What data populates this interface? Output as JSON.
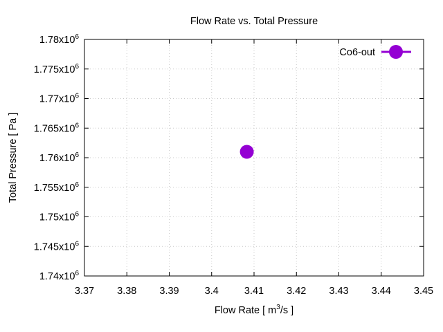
{
  "chart_data": {
    "type": "scatter",
    "title": "Flow Rate vs. Total Pressure",
    "xlabel": "Flow Rate [ m3/s ]",
    "xlabel_parts": {
      "pre": "Flow Rate [ m",
      "sup": "3",
      "post": "/s ]"
    },
    "ylabel": "Total Pressure [ Pa ]",
    "xlim": [
      3.37,
      3.45
    ],
    "ylim": [
      1740000,
      1780000
    ],
    "x_ticks": [
      {
        "value": 3.37,
        "label": "3.37"
      },
      {
        "value": 3.38,
        "label": "3.38"
      },
      {
        "value": 3.39,
        "label": "3.39"
      },
      {
        "value": 3.4,
        "label": "3.4"
      },
      {
        "value": 3.41,
        "label": "3.41"
      },
      {
        "value": 3.42,
        "label": "3.42"
      },
      {
        "value": 3.43,
        "label": "3.43"
      },
      {
        "value": 3.44,
        "label": "3.44"
      },
      {
        "value": 3.45,
        "label": "3.45"
      }
    ],
    "y_ticks": [
      {
        "value": 1740000,
        "mantissa": "1.74x10",
        "exp": "6"
      },
      {
        "value": 1745000,
        "mantissa": "1.745x10",
        "exp": "6"
      },
      {
        "value": 1750000,
        "mantissa": "1.75x10",
        "exp": "6"
      },
      {
        "value": 1755000,
        "mantissa": "1.755x10",
        "exp": "6"
      },
      {
        "value": 1760000,
        "mantissa": "1.76x10",
        "exp": "6"
      },
      {
        "value": 1765000,
        "mantissa": "1.765x10",
        "exp": "6"
      },
      {
        "value": 1770000,
        "mantissa": "1.77x10",
        "exp": "6"
      },
      {
        "value": 1775000,
        "mantissa": "1.775x10",
        "exp": "6"
      },
      {
        "value": 1780000,
        "mantissa": "1.78x10",
        "exp": "6"
      }
    ],
    "grid": true,
    "legend_position": "top-right",
    "series": [
      {
        "name": "Co6-out",
        "color": "#9400d3",
        "points": [
          {
            "x": 3.4083,
            "y": 1761000
          }
        ]
      }
    ]
  }
}
